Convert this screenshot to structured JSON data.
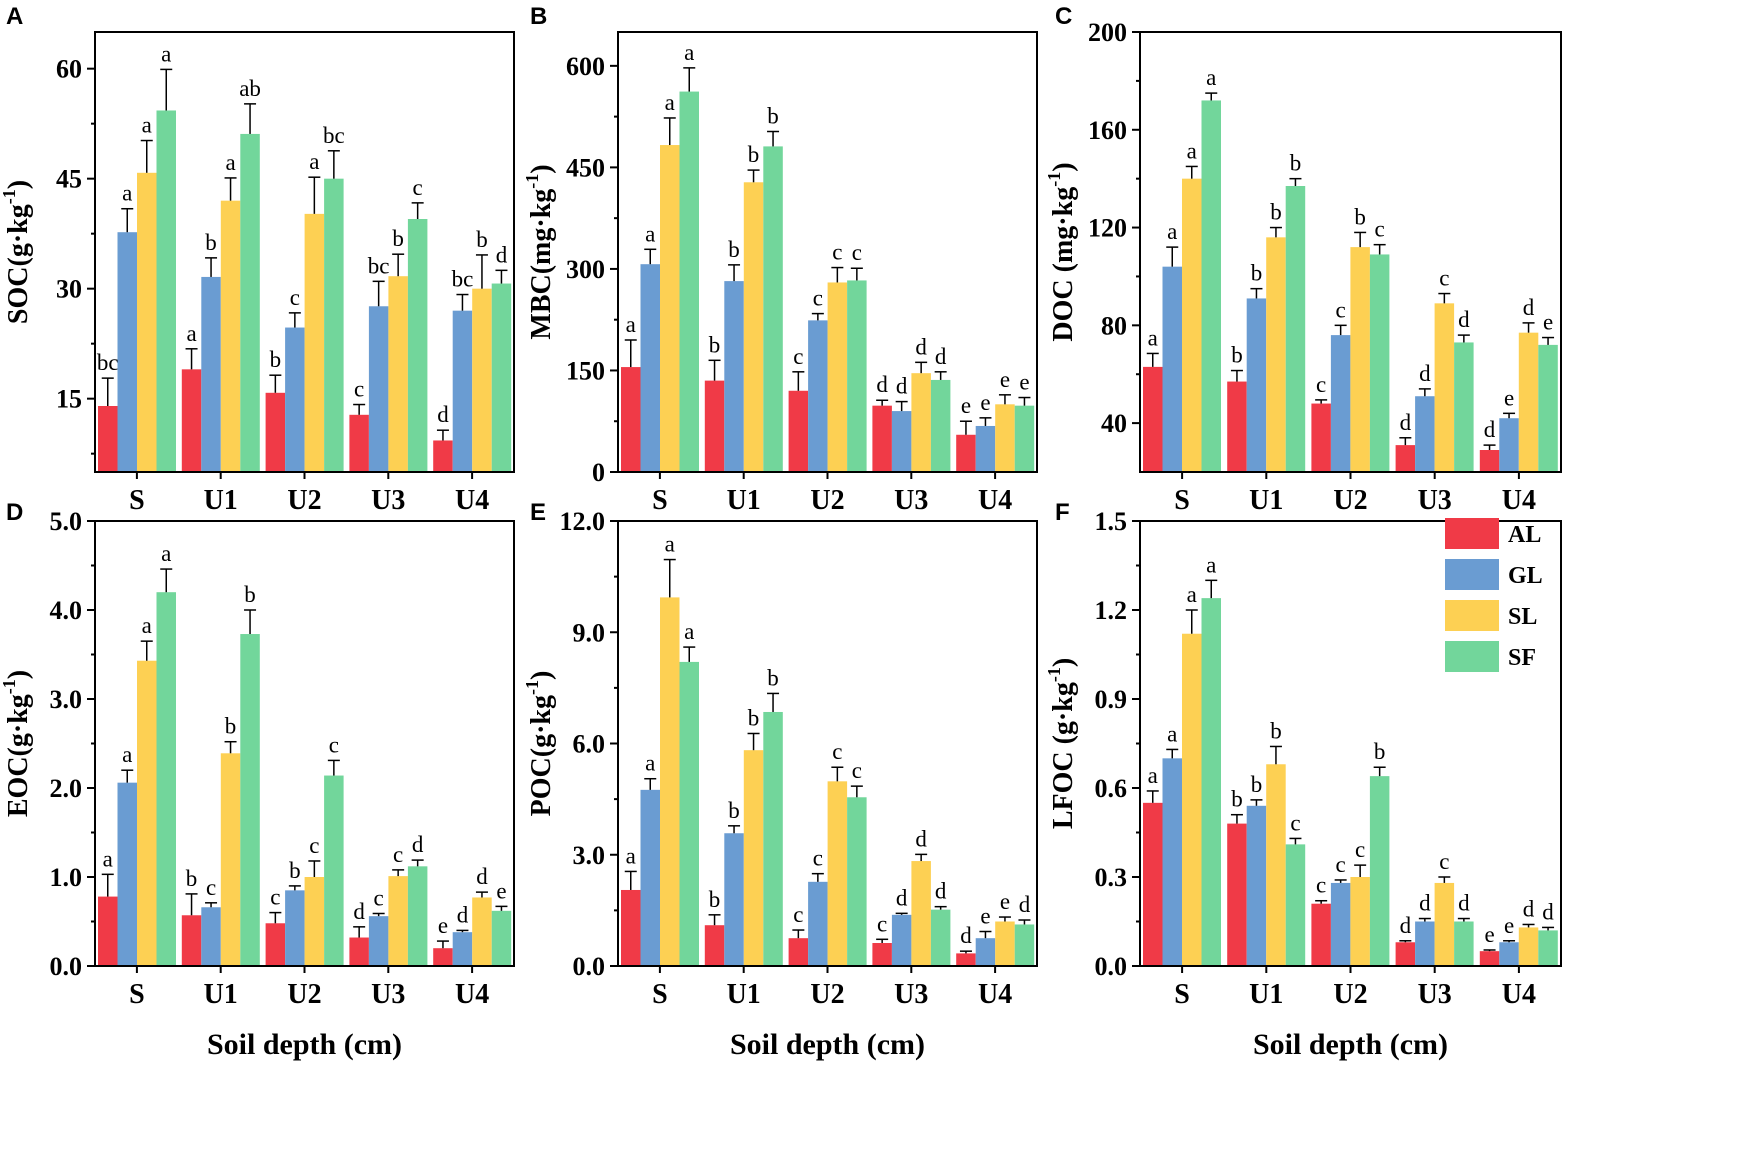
{
  "colors": {
    "AL": "#f03a47",
    "GL": "#6a9cd2",
    "SL": "#fdd053",
    "SF": "#72d69b"
  },
  "legend": [
    "AL",
    "GL",
    "SL",
    "SF"
  ],
  "chart_data": [
    {
      "panel": "A",
      "type": "bar",
      "ylabel": "SOC(g·kg-1)",
      "ylabel_main": "SOC(g·kg",
      "ylabel_sup": "-1",
      "ylabel_close": ")",
      "xlabel": "",
      "categories": [
        "S",
        "U1",
        "U2",
        "U3",
        "U4"
      ],
      "ylim": [
        5,
        65
      ],
      "yticks": [
        15,
        30,
        45,
        60
      ],
      "ytick_labels": [
        "15",
        "30",
        "45",
        "60"
      ],
      "series": [
        {
          "name": "AL",
          "values": [
            14.0,
            19.0,
            15.8,
            12.8,
            9.3
          ],
          "errors": [
            3.8,
            2.8,
            2.4,
            1.4,
            1.4
          ],
          "labels": [
            "bc",
            "a",
            "b",
            "c",
            "d"
          ]
        },
        {
          "name": "GL",
          "values": [
            37.7,
            31.6,
            24.7,
            27.6,
            27.0
          ],
          "errors": [
            3.2,
            2.6,
            2.0,
            3.4,
            2.2
          ],
          "labels": [
            "a",
            "b",
            "c",
            "bc",
            "bc"
          ]
        },
        {
          "name": "SL",
          "values": [
            45.8,
            42.0,
            40.2,
            31.7,
            30.0
          ],
          "errors": [
            4.4,
            3.1,
            5.0,
            3.0,
            4.6
          ],
          "labels": [
            "a",
            "a",
            "a",
            "b",
            "b"
          ]
        },
        {
          "name": "SF",
          "values": [
            54.3,
            51.1,
            45.0,
            39.5,
            30.7
          ],
          "errors": [
            5.6,
            4.1,
            3.8,
            2.2,
            1.8
          ],
          "labels": [
            "a",
            "ab",
            "bc",
            "c",
            "d"
          ]
        }
      ]
    },
    {
      "panel": "B",
      "type": "bar",
      "ylabel": "MBC(mg·kg-1)",
      "ylabel_main": "MBC(mg·kg",
      "ylabel_sup": "-1",
      "ylabel_close": ")",
      "xlabel": "",
      "categories": [
        "S",
        "U1",
        "U2",
        "U3",
        "U4"
      ],
      "ylim": [
        0,
        650
      ],
      "yticks": [
        0,
        150,
        300,
        450,
        600
      ],
      "ytick_labels": [
        "0",
        "150",
        "300",
        "450",
        "600"
      ],
      "series": [
        {
          "name": "AL",
          "values": [
            155,
            135,
            120,
            98,
            55
          ],
          "errors": [
            40,
            30,
            28,
            8,
            20
          ],
          "labels": [
            "a",
            "b",
            "c",
            "d",
            "e"
          ]
        },
        {
          "name": "GL",
          "values": [
            307,
            282,
            224,
            90,
            68
          ],
          "errors": [
            22,
            24,
            10,
            14,
            12
          ],
          "labels": [
            "a",
            "b",
            "c",
            "d",
            "e"
          ]
        },
        {
          "name": "SL",
          "values": [
            483,
            428,
            280,
            146,
            100
          ],
          "errors": [
            40,
            18,
            22,
            16,
            14
          ],
          "labels": [
            "a",
            "b",
            "c",
            "d",
            "e"
          ]
        },
        {
          "name": "SF",
          "values": [
            562,
            481,
            283,
            136,
            98
          ],
          "errors": [
            35,
            22,
            18,
            12,
            12
          ],
          "labels": [
            "a",
            "b",
            "c",
            "d",
            "e"
          ]
        }
      ]
    },
    {
      "panel": "C",
      "type": "bar",
      "ylabel": "DOC (mg·kg-1)",
      "ylabel_main": "DOC (mg·kg",
      "ylabel_sup": "-1",
      "ylabel_close": ")",
      "xlabel": "",
      "categories": [
        "S",
        "U1",
        "U2",
        "U3",
        "U4"
      ],
      "ylim": [
        20,
        200
      ],
      "yticks": [
        40,
        80,
        120,
        160,
        200
      ],
      "ytick_labels": [
        "40",
        "80",
        "120",
        "160",
        "200"
      ],
      "series": [
        {
          "name": "AL",
          "values": [
            63,
            57,
            48,
            31,
            29
          ],
          "errors": [
            5.5,
            4.5,
            1.5,
            3.0,
            2.0
          ],
          "labels": [
            "a",
            "b",
            "c",
            "d",
            "d"
          ]
        },
        {
          "name": "GL",
          "values": [
            104,
            91,
            76,
            51,
            42
          ],
          "errors": [
            8,
            4,
            4,
            3,
            2
          ],
          "labels": [
            "a",
            "b",
            "c",
            "d",
            "e"
          ]
        },
        {
          "name": "SL",
          "values": [
            140,
            116,
            112,
            89,
            77
          ],
          "errors": [
            5,
            4,
            6,
            4,
            4
          ],
          "labels": [
            "a",
            "b",
            "b",
            "c",
            "d"
          ]
        },
        {
          "name": "SF",
          "values": [
            172,
            137,
            109,
            73,
            72
          ],
          "errors": [
            3,
            3,
            4,
            3,
            3
          ],
          "labels": [
            "a",
            "b",
            "c",
            "d",
            "e"
          ]
        }
      ]
    },
    {
      "panel": "D",
      "type": "bar",
      "ylabel": "EOC(g·kg-1)",
      "ylabel_main": "EOC(g·kg",
      "ylabel_sup": "-1",
      "ylabel_close": ")",
      "xlabel": "",
      "categories": [
        "S",
        "U1",
        "U2",
        "U3",
        "U4"
      ],
      "ylim": [
        0,
        5
      ],
      "yticks": [
        0,
        1,
        2,
        3,
        4,
        5
      ],
      "ytick_labels": [
        "0.0",
        "1.0",
        "2.0",
        "3.0",
        "4.0",
        "5.0"
      ],
      "series": [
        {
          "name": "AL",
          "values": [
            0.78,
            0.57,
            0.48,
            0.32,
            0.2
          ],
          "errors": [
            0.25,
            0.24,
            0.12,
            0.12,
            0.08
          ],
          "labels": [
            "a",
            "b",
            "c",
            "d",
            "e"
          ]
        },
        {
          "name": "GL",
          "values": [
            2.06,
            0.66,
            0.85,
            0.56,
            0.38
          ],
          "errors": [
            0.14,
            0.05,
            0.05,
            0.03,
            0.02
          ],
          "labels": [
            "a",
            "c",
            "b",
            "c",
            "d"
          ]
        },
        {
          "name": "SL",
          "values": [
            3.43,
            2.39,
            1.0,
            1.01,
            0.77
          ],
          "errors": [
            0.22,
            0.13,
            0.18,
            0.07,
            0.06
          ],
          "labels": [
            "a",
            "b",
            "c",
            "c",
            "d"
          ]
        },
        {
          "name": "SF",
          "values": [
            4.2,
            3.73,
            2.14,
            1.12,
            0.62
          ],
          "errors": [
            0.26,
            0.27,
            0.17,
            0.07,
            0.05
          ],
          "labels": [
            "a",
            "b",
            "c",
            "d",
            "e"
          ]
        }
      ]
    },
    {
      "panel": "E",
      "type": "bar",
      "ylabel": "POC(g·kg-1)",
      "ylabel_main": "POC(g·kg",
      "ylabel_sup": "-1",
      "ylabel_close": ")",
      "xlabel": "Soil depth (cm)",
      "categories": [
        "S",
        "U1",
        "U2",
        "U3",
        "U4"
      ],
      "ylim": [
        0,
        12
      ],
      "yticks": [
        0,
        3,
        6,
        9,
        12
      ],
      "ytick_labels": [
        "0.0",
        "3.0",
        "6.0",
        "9.0",
        "12.0"
      ],
      "series": [
        {
          "name": "AL",
          "values": [
            2.05,
            1.1,
            0.75,
            0.62,
            0.34
          ],
          "errors": [
            0.5,
            0.28,
            0.22,
            0.1,
            0.06
          ],
          "labels": [
            "a",
            "b",
            "c",
            "c",
            "d"
          ]
        },
        {
          "name": "GL",
          "values": [
            4.75,
            3.58,
            2.27,
            1.38,
            0.75
          ],
          "errors": [
            0.3,
            0.2,
            0.22,
            0.04,
            0.18
          ],
          "labels": [
            "a",
            "b",
            "c",
            "d",
            "e"
          ]
        },
        {
          "name": "SL",
          "values": [
            9.94,
            5.82,
            4.98,
            2.83,
            1.2
          ],
          "errors": [
            1.02,
            0.45,
            0.38,
            0.18,
            0.12
          ],
          "labels": [
            "a",
            "b",
            "c",
            "d",
            "e"
          ]
        },
        {
          "name": "SF",
          "values": [
            8.2,
            6.85,
            4.55,
            1.52,
            1.12
          ],
          "errors": [
            0.4,
            0.5,
            0.3,
            0.08,
            0.12
          ],
          "labels": [
            "a",
            "b",
            "c",
            "d",
            "d"
          ]
        }
      ]
    },
    {
      "panel": "F",
      "type": "bar",
      "ylabel": "LFOC (g·kg-1)",
      "ylabel_main": "LFOC (g·kg",
      "ylabel_sup": "-1",
      "ylabel_close": ")",
      "xlabel": "Soil depth (cm)",
      "categories": [
        "S",
        "U1",
        "U2",
        "U3",
        "U4"
      ],
      "ylim": [
        0,
        1.5
      ],
      "yticks": [
        0,
        0.3,
        0.6,
        0.9,
        1.2,
        1.5
      ],
      "ytick_labels": [
        "0.0",
        "0.3",
        "0.6",
        "0.9",
        "1.2",
        "1.5"
      ],
      "series": [
        {
          "name": "AL",
          "values": [
            0.55,
            0.48,
            0.21,
            0.08,
            0.05
          ],
          "errors": [
            0.04,
            0.03,
            0.01,
            0.005,
            0.004
          ],
          "labels": [
            "a",
            "b",
            "c",
            "d",
            "e"
          ]
        },
        {
          "name": "GL",
          "values": [
            0.7,
            0.54,
            0.28,
            0.15,
            0.08
          ],
          "errors": [
            0.03,
            0.02,
            0.01,
            0.01,
            0.005
          ],
          "labels": [
            "a",
            "b",
            "c",
            "d",
            "e"
          ]
        },
        {
          "name": "SL",
          "values": [
            1.12,
            0.68,
            0.3,
            0.28,
            0.13
          ],
          "errors": [
            0.08,
            0.06,
            0.04,
            0.02,
            0.01
          ],
          "labels": [
            "a",
            "b",
            "c",
            "c",
            "d"
          ]
        },
        {
          "name": "SF",
          "values": [
            1.24,
            0.41,
            0.64,
            0.15,
            0.12
          ],
          "errors": [
            0.06,
            0.02,
            0.03,
            0.01,
            0.01
          ],
          "labels": [
            "a",
            "c",
            "b",
            "d",
            "d"
          ]
        }
      ]
    }
  ]
}
